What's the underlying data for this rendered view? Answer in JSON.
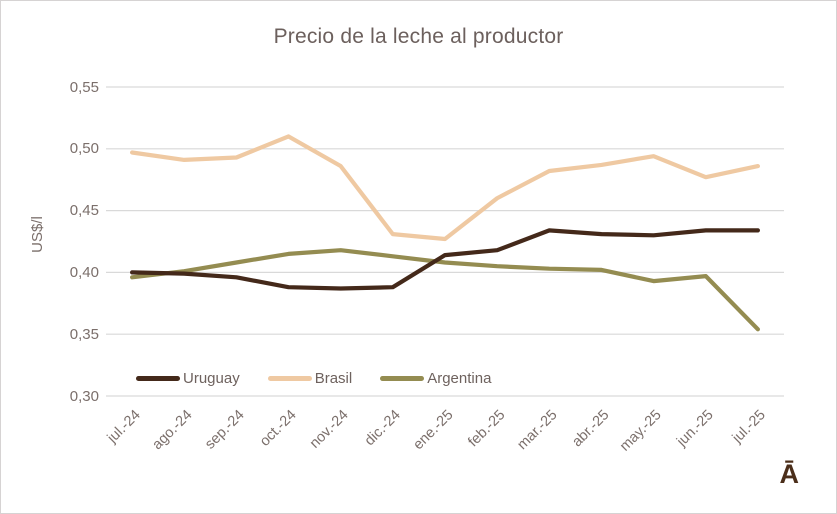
{
  "window": {
    "background": "#ffffff",
    "border_color": "#d6d3d3"
  },
  "chart_data": {
    "type": "line",
    "title": "Precio de la leche al productor",
    "xlabel": "",
    "ylabel": "US$/l",
    "categories": [
      "jul.-24",
      "ago.-24",
      "sep.-24",
      "oct.-24",
      "nov.-24",
      "dic.-24",
      "ene.-25",
      "feb.-25",
      "mar.-25",
      "abr.-25",
      "may.-25",
      "jun.-25",
      "jul.-25"
    ],
    "series": [
      {
        "name": "Brasil",
        "color": "#efc9a2",
        "values": [
          0.497,
          0.491,
          0.493,
          0.51,
          0.486,
          0.431,
          0.427,
          0.46,
          0.482,
          0.487,
          0.494,
          0.477,
          0.486
        ]
      },
      {
        "name": "Argentina",
        "color": "#948c51",
        "values": [
          0.396,
          0.401,
          0.408,
          0.415,
          0.418,
          0.413,
          0.408,
          0.405,
          0.403,
          0.402,
          0.393,
          0.397,
          0.354
        ]
      },
      {
        "name": "Uruguay",
        "color": "#44291a",
        "values": [
          0.4,
          0.399,
          0.396,
          0.388,
          0.387,
          0.388,
          0.414,
          0.418,
          0.434,
          0.431,
          0.43,
          0.434,
          0.434
        ]
      }
    ],
    "legend_order": [
      "Uruguay",
      "Brasil",
      "Argentina"
    ],
    "ylim": [
      0.3,
      0.55
    ],
    "ytick_step": 0.05,
    "ytick_labels_top_to_bottom": [
      "0,55",
      "0,50",
      "0,45",
      "0,40",
      "0,35",
      "0,30"
    ],
    "grid": true,
    "gridline_color": "#d9d9d9",
    "legend_position": "inside-bottom-left",
    "decimal_separator": ","
  },
  "legend": {
    "item1": "Uruguay",
    "item2": "Brasil",
    "item3": "Argentina"
  },
  "watermark": {
    "glyph": "Ā"
  },
  "text_colors": {
    "title": "#6c605d",
    "axis": "#7b6f6b"
  }
}
